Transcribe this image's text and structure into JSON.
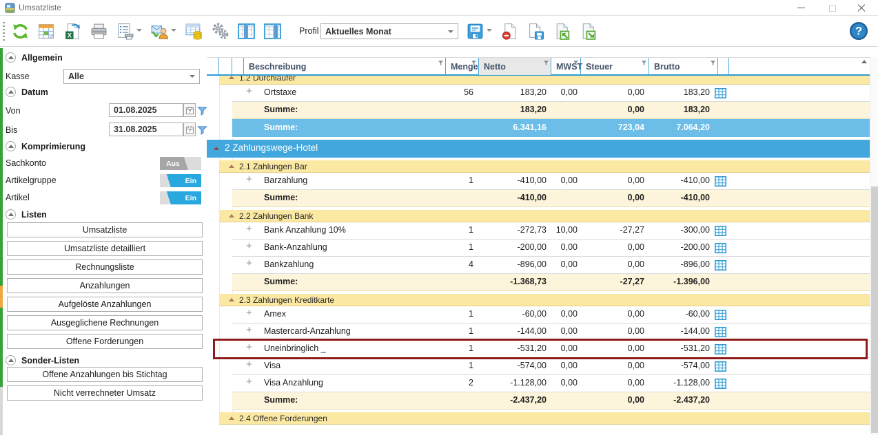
{
  "window": {
    "title": "Umsatzliste"
  },
  "toolbar": {
    "profile_label": "Profil",
    "profile_value": "Aktuelles Monat",
    "buttons": [
      {
        "name": "refresh",
        "icon": "refresh"
      },
      {
        "name": "report-calendar",
        "icon": "calendar"
      },
      {
        "name": "export-excel",
        "icon": "excel"
      },
      {
        "name": "print",
        "icon": "print"
      },
      {
        "name": "print-options",
        "icon": "printlist",
        "caret": true
      },
      {
        "name": "send-email",
        "icon": "senduser",
        "caret": true
      },
      {
        "name": "table-values",
        "icon": "tablecoins"
      },
      {
        "name": "settings",
        "icon": "gears"
      },
      {
        "name": "column-layout-1",
        "icon": "colsel1"
      },
      {
        "name": "column-layout-2",
        "icon": "colsel2"
      }
    ],
    "profile_buttons": [
      {
        "name": "save-profile",
        "icon": "save",
        "caret": true
      },
      {
        "name": "delete-profile",
        "icon": "pageminus"
      },
      {
        "name": "save-profile-as",
        "icon": "pagesave"
      },
      {
        "name": "import-profile",
        "icon": "pageimport"
      },
      {
        "name": "export-profile",
        "icon": "pageexport"
      }
    ],
    "help": {
      "name": "help",
      "icon": "help"
    }
  },
  "sidebar": {
    "allgemein": {
      "title": "Allgemein",
      "kasse_label": "Kasse",
      "kasse_value": "Alle"
    },
    "datum": {
      "title": "Datum",
      "von_label": "Von",
      "von_value": "01.08.2025",
      "bis_label": "Bis",
      "bis_value": "31.08.2025"
    },
    "komprimierung": {
      "title": "Komprimierung",
      "toggles": [
        {
          "label": "Sachkonto",
          "state": "Aus",
          "on": false
        },
        {
          "label": "Artikelgruppe",
          "state": "Ein",
          "on": true
        },
        {
          "label": "Artikel",
          "state": "Ein",
          "on": true
        }
      ]
    },
    "listen": {
      "title": "Listen",
      "buttons": [
        "Umsatzliste",
        "Umsatzliste detailliert",
        "Rechnungsliste",
        "Anzahlungen",
        "Aufgelöste Anzahlungen",
        "Ausgeglichene Rechnungen",
        "Offene Forderungen"
      ]
    },
    "sonder": {
      "title": "Sonder-Listen",
      "buttons": [
        "Offene Anzahlungen bis Stichtag",
        "Nicht verrechneter Umsatz"
      ]
    }
  },
  "table": {
    "columns": [
      {
        "key": "beschreibung",
        "label": "Beschreibung"
      },
      {
        "key": "menge",
        "label": "Menge"
      },
      {
        "key": "netto",
        "label": "Netto",
        "sorted": true
      },
      {
        "key": "mwst",
        "label": "MWST"
      },
      {
        "key": "steuer",
        "label": "Steuer"
      },
      {
        "key": "brutto",
        "label": "Brutto"
      }
    ],
    "sum_label": "Summe:",
    "rows": [
      {
        "type": "group-sub",
        "label": "1.2 Durchläufer",
        "clipped": "top"
      },
      {
        "type": "data",
        "desc": "Ortstaxe",
        "menge": "56",
        "netto": "183,20",
        "mwst": "0,00",
        "steuer": "0,00",
        "brutto": "183,20"
      },
      {
        "type": "sum",
        "netto": "183,20",
        "steuer": "0,00",
        "brutto": "183,20"
      },
      {
        "type": "sum-total",
        "netto": "6.341,16",
        "steuer": "723,04",
        "brutto": "7.064,20"
      },
      {
        "type": "group-main",
        "label": "2 Zahlungswege-Hotel"
      },
      {
        "type": "group-sub",
        "label": "2.1 Zahlungen Bar"
      },
      {
        "type": "data",
        "desc": "Barzahlung",
        "menge": "1",
        "netto": "-410,00",
        "mwst": "0,00",
        "steuer": "0,00",
        "brutto": "-410,00"
      },
      {
        "type": "sum",
        "netto": "-410,00",
        "steuer": "0,00",
        "brutto": "-410,00"
      },
      {
        "type": "group-sub",
        "label": "2.2 Zahlungen Bank"
      },
      {
        "type": "data",
        "desc": "Bank Anzahlung 10%",
        "menge": "1",
        "netto": "-272,73",
        "mwst": "10,00",
        "steuer": "-27,27",
        "brutto": "-300,00"
      },
      {
        "type": "data",
        "desc": "Bank-Anzahlung",
        "menge": "1",
        "netto": "-200,00",
        "mwst": "0,00",
        "steuer": "0,00",
        "brutto": "-200,00"
      },
      {
        "type": "data",
        "desc": "Bankzahlung",
        "menge": "4",
        "netto": "-896,00",
        "mwst": "0,00",
        "steuer": "0,00",
        "brutto": "-896,00"
      },
      {
        "type": "sum",
        "netto": "-1.368,73",
        "steuer": "-27,27",
        "brutto": "-1.396,00"
      },
      {
        "type": "group-sub",
        "label": "2.3 Zahlungen Kreditkarte"
      },
      {
        "type": "data",
        "desc": "Amex",
        "menge": "1",
        "netto": "-60,00",
        "mwst": "0,00",
        "steuer": "0,00",
        "brutto": "-60,00"
      },
      {
        "type": "data",
        "desc": "Mastercard-Anzahlung",
        "menge": "1",
        "netto": "-144,00",
        "mwst": "0,00",
        "steuer": "0,00",
        "brutto": "-144,00"
      },
      {
        "type": "data",
        "desc": "Uneinbringlich _",
        "menge": "1",
        "netto": "-531,20",
        "mwst": "0,00",
        "steuer": "0,00",
        "brutto": "-531,20",
        "highlighted": true
      },
      {
        "type": "data",
        "desc": "Visa",
        "menge": "1",
        "netto": "-574,00",
        "mwst": "0,00",
        "steuer": "0,00",
        "brutto": "-574,00"
      },
      {
        "type": "data",
        "desc": "Visa Anzahlung",
        "menge": "2",
        "netto": "-1.128,00",
        "mwst": "0,00",
        "steuer": "0,00",
        "brutto": "-1.128,00"
      },
      {
        "type": "sum",
        "netto": "-2.437,20",
        "steuer": "0,00",
        "brutto": "-2.437,20"
      },
      {
        "type": "group-sub",
        "label": "2.4 Offene Forderungen",
        "clipped": "bottom"
      }
    ]
  },
  "colors": {
    "accent_blue": "#2E9BD6",
    "group_main_bg": "#42A7DD",
    "group_sub_bg": "#FBE8A3",
    "sum_bg": "#FDF5DB",
    "sum_total_bg": "#6CBEE8",
    "toggle_on": "#29A8E0",
    "toggle_off": "#A6A6A6",
    "highlight_border": "#8E1B1B"
  }
}
